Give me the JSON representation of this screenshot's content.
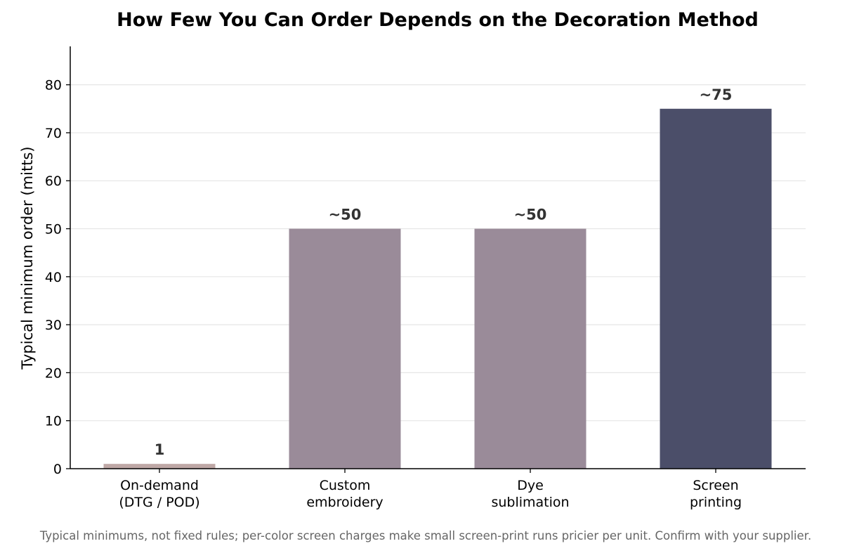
{
  "chart_data": {
    "type": "bar",
    "title": "How Few You Can Order Depends on the Decoration Method",
    "ylabel": "Typical minimum order (mitts)",
    "xlabel": "",
    "ylim": [
      0,
      88
    ],
    "yticks": [
      0,
      10,
      20,
      30,
      40,
      50,
      60,
      70,
      80
    ],
    "grid": "horizontal",
    "categories": [
      [
        "On-demand",
        "(DTG / POD)"
      ],
      [
        "Custom",
        "embroidery"
      ],
      [
        "Dye",
        "sublimation"
      ],
      [
        "Screen",
        "printing"
      ]
    ],
    "values": [
      1,
      50,
      50,
      75
    ],
    "value_labels": [
      "1",
      "~50",
      "~50",
      "~75"
    ],
    "colors": [
      "#bfa8a6",
      "#9a8b99",
      "#9a8b99",
      "#4b4e69"
    ],
    "footnote": "Typical minimums, not fixed rules; per-color screen charges make small screen-print runs pricier per unit. Confirm with your supplier."
  }
}
